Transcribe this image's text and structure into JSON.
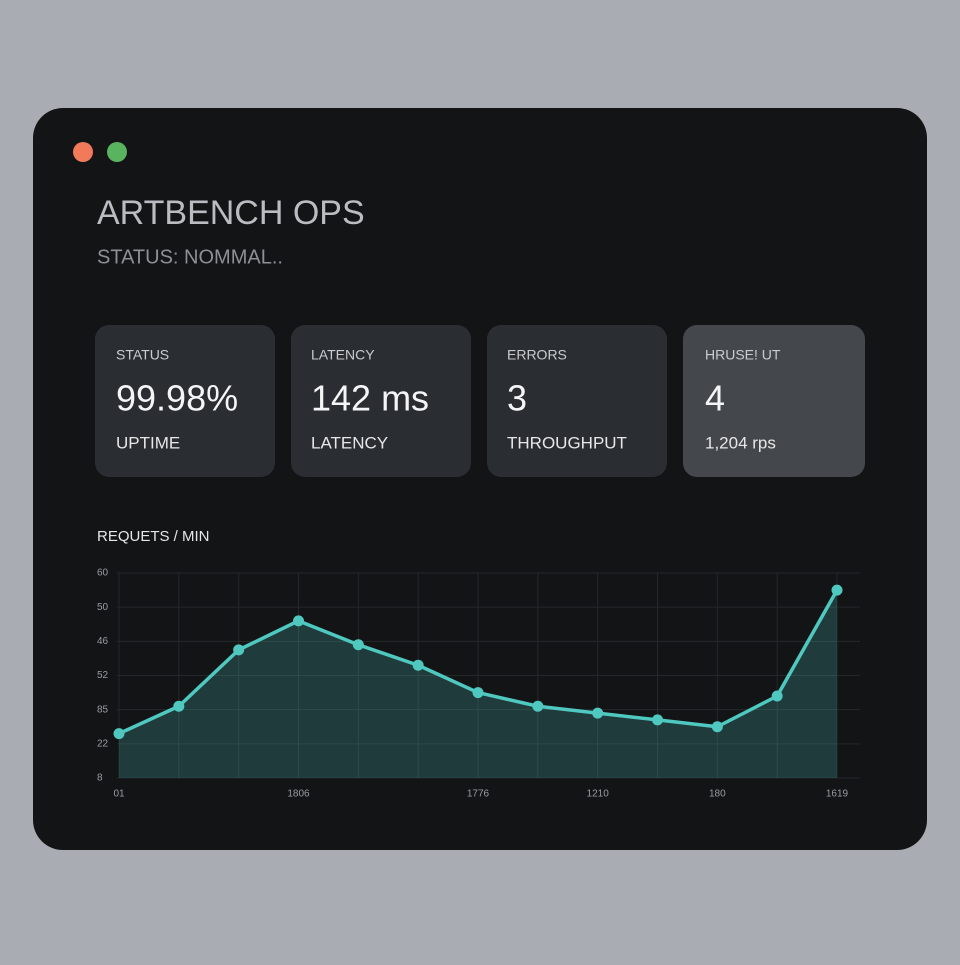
{
  "header": {
    "title": "ARTBENCH OPS",
    "subtitle": "STATUS: NOMMAL.."
  },
  "cards": [
    {
      "label": "STATUS",
      "value": "99.98%",
      "caption": "UPTIME"
    },
    {
      "label": "LATENCY",
      "value": "142 ms",
      "caption": "LATENCY"
    },
    {
      "label": "ERRORS",
      "value": "3",
      "caption": "THROUGHPUT"
    },
    {
      "label": "HRUSE! UT",
      "value": "4",
      "caption": "1,204 rps"
    }
  ],
  "chart_data": {
    "type": "area",
    "title": "REQUETS / MIN",
    "categories": [
      "01",
      null,
      null,
      "1806",
      null,
      null,
      "1776",
      null,
      "1210",
      null,
      "180",
      null,
      "1619"
    ],
    "values": [
      13,
      21,
      37.5,
      46,
      39,
      33,
      25,
      21,
      19,
      17,
      15,
      24,
      55
    ],
    "color": "#4fc8c0",
    "ylim": [
      0,
      60
    ],
    "yticks": [
      60,
      50,
      {
        "value": 40,
        "label": "46"
      },
      {
        "value": 30,
        "label": "52"
      },
      {
        "value": 20,
        "label": "85"
      },
      {
        "value": 10,
        "label": "22"
      },
      {
        "value": 0,
        "label": "8"
      }
    ],
    "grid": true
  }
}
